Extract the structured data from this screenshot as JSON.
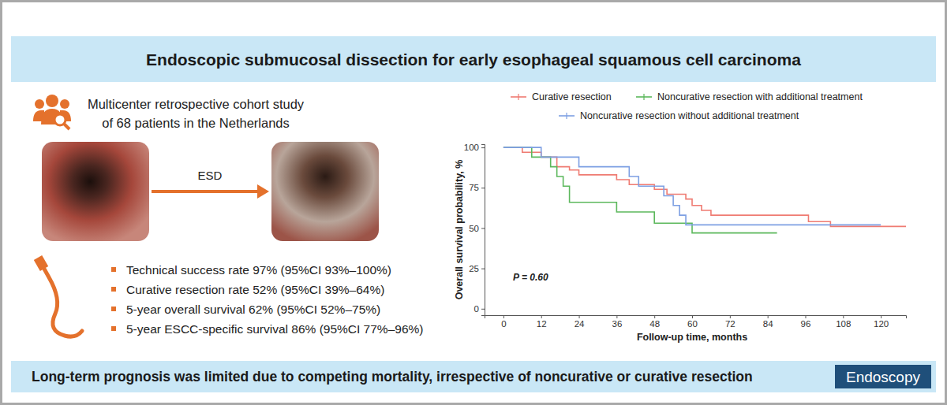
{
  "header": {
    "title": "Endoscopic submucosal dissection for early esophageal squamous cell carcinoma"
  },
  "study": [
    "Multicenter retrospective cohort study",
    "of 68 patients in the Netherlands"
  ],
  "procedure_label": "ESD",
  "results": [
    "Technical success rate 97% (95%CI 93%–100%)",
    "Curative resection rate 52% (95%CI 39%–64%)",
    "5-year overall survival 62% (95%CI 52%–75%)",
    "5-year ESCC-specific survival 86% (95%CI 77%–96%)"
  ],
  "footer": {
    "conclusion": "Long-term prognosis was limited due to competing mortality, irrespective of noncurative or curative resection",
    "journal": "Endoscopy"
  },
  "chart_data": {
    "type": "line",
    "line_style": "step",
    "x_label": "Follow-up time, months",
    "y_label": "Overall survival probability, %",
    "annotations": [
      "P = 0.60"
    ],
    "xlim": [
      -6,
      128
    ],
    "xticks": [
      0,
      12,
      24,
      36,
      48,
      60,
      72,
      84,
      96,
      108,
      120
    ],
    "ylim": [
      -4,
      102
    ],
    "yticks": [
      0,
      25,
      50,
      75,
      100
    ],
    "grid": false,
    "legend": "top",
    "series": [
      {
        "name": "Curative resection",
        "color": "#ef7b72",
        "x": [
          0,
          6,
          12,
          17,
          21,
          24,
          36,
          40,
          48,
          52,
          58,
          60,
          63,
          66,
          97,
          104,
          128
        ],
        "values": [
          100,
          97,
          94,
          88,
          86,
          83,
          80,
          77,
          74,
          71,
          68,
          64,
          61,
          58,
          54,
          51,
          51
        ]
      },
      {
        "name": "Noncurative resection with additional treatment",
        "color": "#5cb85c",
        "x": [
          0,
          9,
          15,
          17,
          19,
          21,
          36,
          48,
          60,
          87
        ],
        "values": [
          100,
          94,
          88,
          82,
          76,
          66,
          60,
          53,
          47,
          47
        ]
      },
      {
        "name": "Noncurative resection without additional treatment",
        "color": "#7d9fe3",
        "x": [
          0,
          12,
          24,
          40,
          43,
          51,
          54,
          56,
          58,
          120
        ],
        "values": [
          100,
          94,
          88,
          82,
          76,
          70,
          64,
          58,
          52,
          52
        ]
      }
    ]
  }
}
